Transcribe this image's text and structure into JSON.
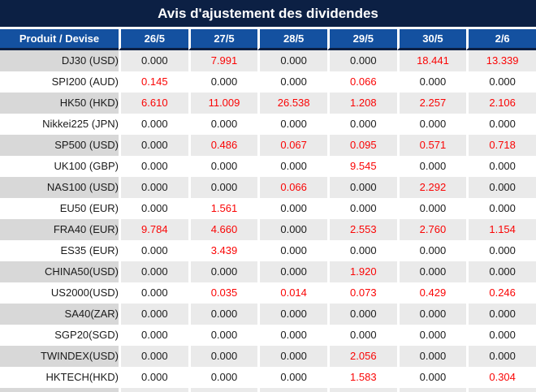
{
  "title": "Avis d'ajustement des dividendes",
  "colors": {
    "title_bar_bg": "#0c2044",
    "column_header_bg": "#1451a0",
    "highlight_red": "#fa0505",
    "gray_row_product_bg": "#d8d8d8",
    "gray_row_value_bg": "#eaeaea",
    "text_dark": "#1b1b1b"
  },
  "table": {
    "product_header": "Produit / Devise",
    "date_headers": [
      "26/5",
      "27/5",
      "28/5",
      "29/5",
      "30/5",
      "2/6"
    ],
    "zero_value": "0.000",
    "rows": [
      {
        "product": "DJ30 (USD)",
        "values": [
          "0.000",
          "7.991",
          "0.000",
          "0.000",
          "18.441",
          "13.339"
        ]
      },
      {
        "product": "SPI200 (AUD)",
        "values": [
          "0.145",
          "0.000",
          "0.000",
          "0.066",
          "0.000",
          "0.000"
        ]
      },
      {
        "product": "HK50 (HKD)",
        "values": [
          "6.610",
          "11.009",
          "26.538",
          "1.208",
          "2.257",
          "2.106"
        ]
      },
      {
        "product": "Nikkei225 (JPN)",
        "values": [
          "0.000",
          "0.000",
          "0.000",
          "0.000",
          "0.000",
          "0.000"
        ]
      },
      {
        "product": "SP500 (USD)",
        "values": [
          "0.000",
          "0.486",
          "0.067",
          "0.095",
          "0.571",
          "0.718"
        ]
      },
      {
        "product": "UK100 (GBP)",
        "values": [
          "0.000",
          "0.000",
          "0.000",
          "9.545",
          "0.000",
          "0.000"
        ]
      },
      {
        "product": "NAS100 (USD)",
        "values": [
          "0.000",
          "0.000",
          "0.066",
          "0.000",
          "2.292",
          "0.000"
        ]
      },
      {
        "product": "EU50 (EUR)",
        "values": [
          "0.000",
          "1.561",
          "0.000",
          "0.000",
          "0.000",
          "0.000"
        ]
      },
      {
        "product": "FRA40 (EUR)",
        "values": [
          "9.784",
          "4.660",
          "0.000",
          "2.553",
          "2.760",
          "1.154"
        ]
      },
      {
        "product": "ES35 (EUR)",
        "values": [
          "0.000",
          "3.439",
          "0.000",
          "0.000",
          "0.000",
          "0.000"
        ]
      },
      {
        "product": "CHINA50(USD)",
        "values": [
          "0.000",
          "0.000",
          "0.000",
          "1.920",
          "0.000",
          "0.000"
        ]
      },
      {
        "product": "US2000(USD)",
        "values": [
          "0.000",
          "0.035",
          "0.014",
          "0.073",
          "0.429",
          "0.246"
        ]
      },
      {
        "product": "SA40(ZAR)",
        "values": [
          "0.000",
          "0.000",
          "0.000",
          "0.000",
          "0.000",
          "0.000"
        ]
      },
      {
        "product": "SGP20(SGD)",
        "values": [
          "0.000",
          "0.000",
          "0.000",
          "0.000",
          "0.000",
          "0.000"
        ]
      },
      {
        "product": "TWINDEX(USD)",
        "values": [
          "0.000",
          "0.000",
          "0.000",
          "2.056",
          "0.000",
          "0.000"
        ]
      },
      {
        "product": "HKTECH(HKD)",
        "values": [
          "0.000",
          "0.000",
          "0.000",
          "1.583",
          "0.000",
          "0.304"
        ]
      }
    ]
  }
}
